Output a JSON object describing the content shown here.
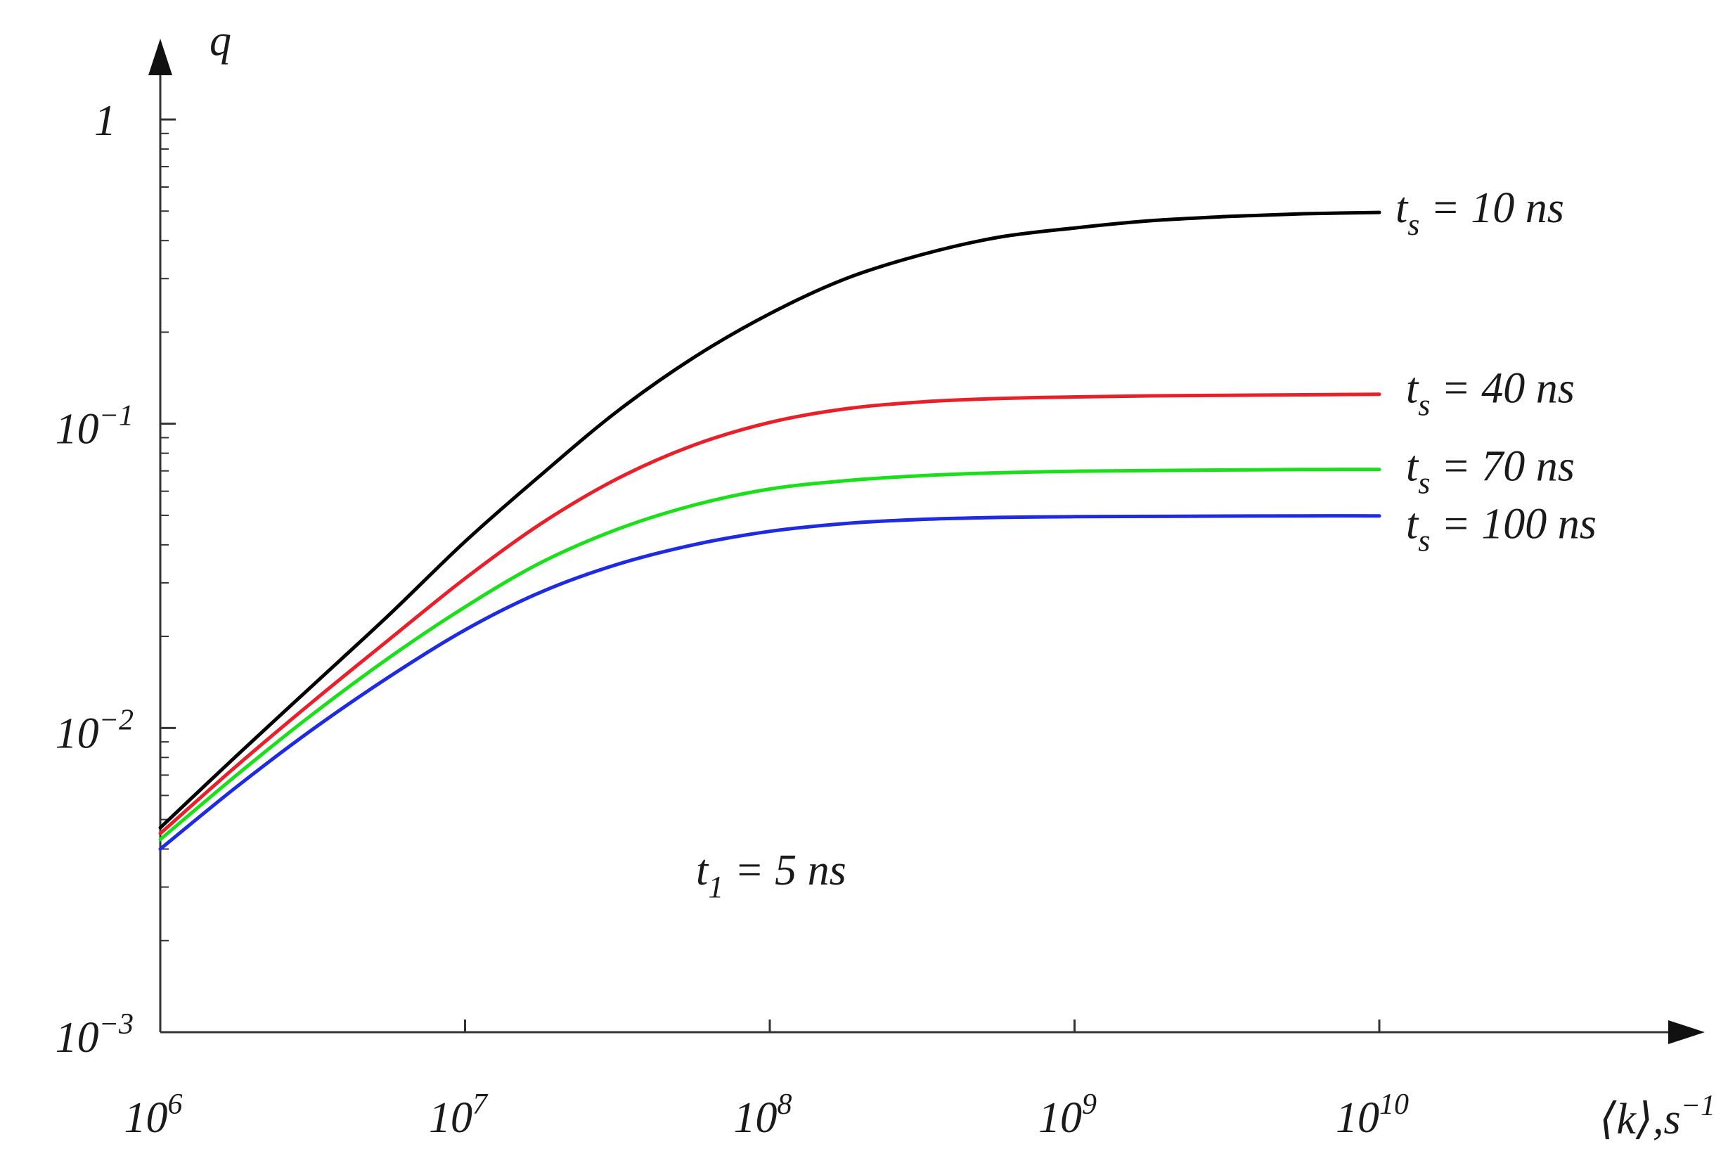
{
  "chart_data": {
    "type": "line",
    "title": "",
    "xlabel_text": "⟨k⟩,s",
    "xlabel_sup": "−1",
    "ylabel": "q",
    "x_scale": "log",
    "y_scale": "log",
    "xlim": [
      1000000,
      10000000000
    ],
    "ylim": [
      0.001,
      1
    ],
    "x_ticks": [
      {
        "base": "10",
        "exp": "6",
        "value": 1000000
      },
      {
        "base": "10",
        "exp": "7",
        "value": 10000000
      },
      {
        "base": "10",
        "exp": "8",
        "value": 100000000
      },
      {
        "base": "10",
        "exp": "9",
        "value": 1000000000
      },
      {
        "base": "10",
        "exp": "10",
        "value": 10000000000
      }
    ],
    "y_ticks": [
      {
        "base": "10",
        "exp": "−3",
        "value": 0.001
      },
      {
        "base": "10",
        "exp": "−2",
        "value": 0.01
      },
      {
        "base": "10",
        "exp": "−1",
        "value": 0.1
      },
      {
        "base": "1",
        "exp": "",
        "value": 1
      }
    ],
    "grid": false,
    "annotation": {
      "t": "t",
      "sub": "1",
      "rest": " = 5 ns"
    },
    "x": [
      1000000,
      1778279,
      3162278,
      5623413,
      10000000,
      17782794,
      31622777,
      56234133,
      100000000,
      177827941,
      316227766,
      562341325,
      1000000000,
      1778279410,
      3162277660,
      5623413252,
      10000000000
    ],
    "series": [
      {
        "name": "10 ns",
        "label": {
          "t": "t",
          "sub": "s",
          "rest": " = 10 ns"
        },
        "color": "#000000",
        "values": [
          0.0047,
          0.0081,
          0.0138,
          0.0235,
          0.041,
          0.068,
          0.11,
          0.165,
          0.23,
          0.3,
          0.36,
          0.41,
          0.44,
          0.465,
          0.48,
          0.49,
          0.495
        ]
      },
      {
        "name": "40 ns",
        "label": {
          "t": "t",
          "sub": "s",
          "rest": " = 40 ns"
        },
        "color": "#e8202a",
        "values": [
          0.0045,
          0.0075,
          0.0122,
          0.0195,
          0.031,
          0.047,
          0.066,
          0.085,
          0.101,
          0.112,
          0.118,
          0.121,
          0.1225,
          0.1235,
          0.124,
          0.1245,
          0.125
        ]
      },
      {
        "name": "70 ns",
        "label": {
          "t": "t",
          "sub": "s",
          "rest": " = 70 ns"
        },
        "color": "#1adf1a",
        "values": [
          0.0043,
          0.007,
          0.0111,
          0.017,
          0.025,
          0.035,
          0.045,
          0.054,
          0.061,
          0.065,
          0.0675,
          0.069,
          0.0698,
          0.0702,
          0.0705,
          0.0707,
          0.0708
        ]
      },
      {
        "name": "100 ns",
        "label": {
          "t": "t",
          "sub": "s",
          "rest": " = 100 ns"
        },
        "color": "#1f2be0",
        "values": [
          0.004,
          0.0064,
          0.0099,
          0.0147,
          0.021,
          0.028,
          0.0345,
          0.04,
          0.0443,
          0.047,
          0.0485,
          0.0492,
          0.0495,
          0.0496,
          0.0497,
          0.0498,
          0.0498
        ]
      }
    ]
  }
}
